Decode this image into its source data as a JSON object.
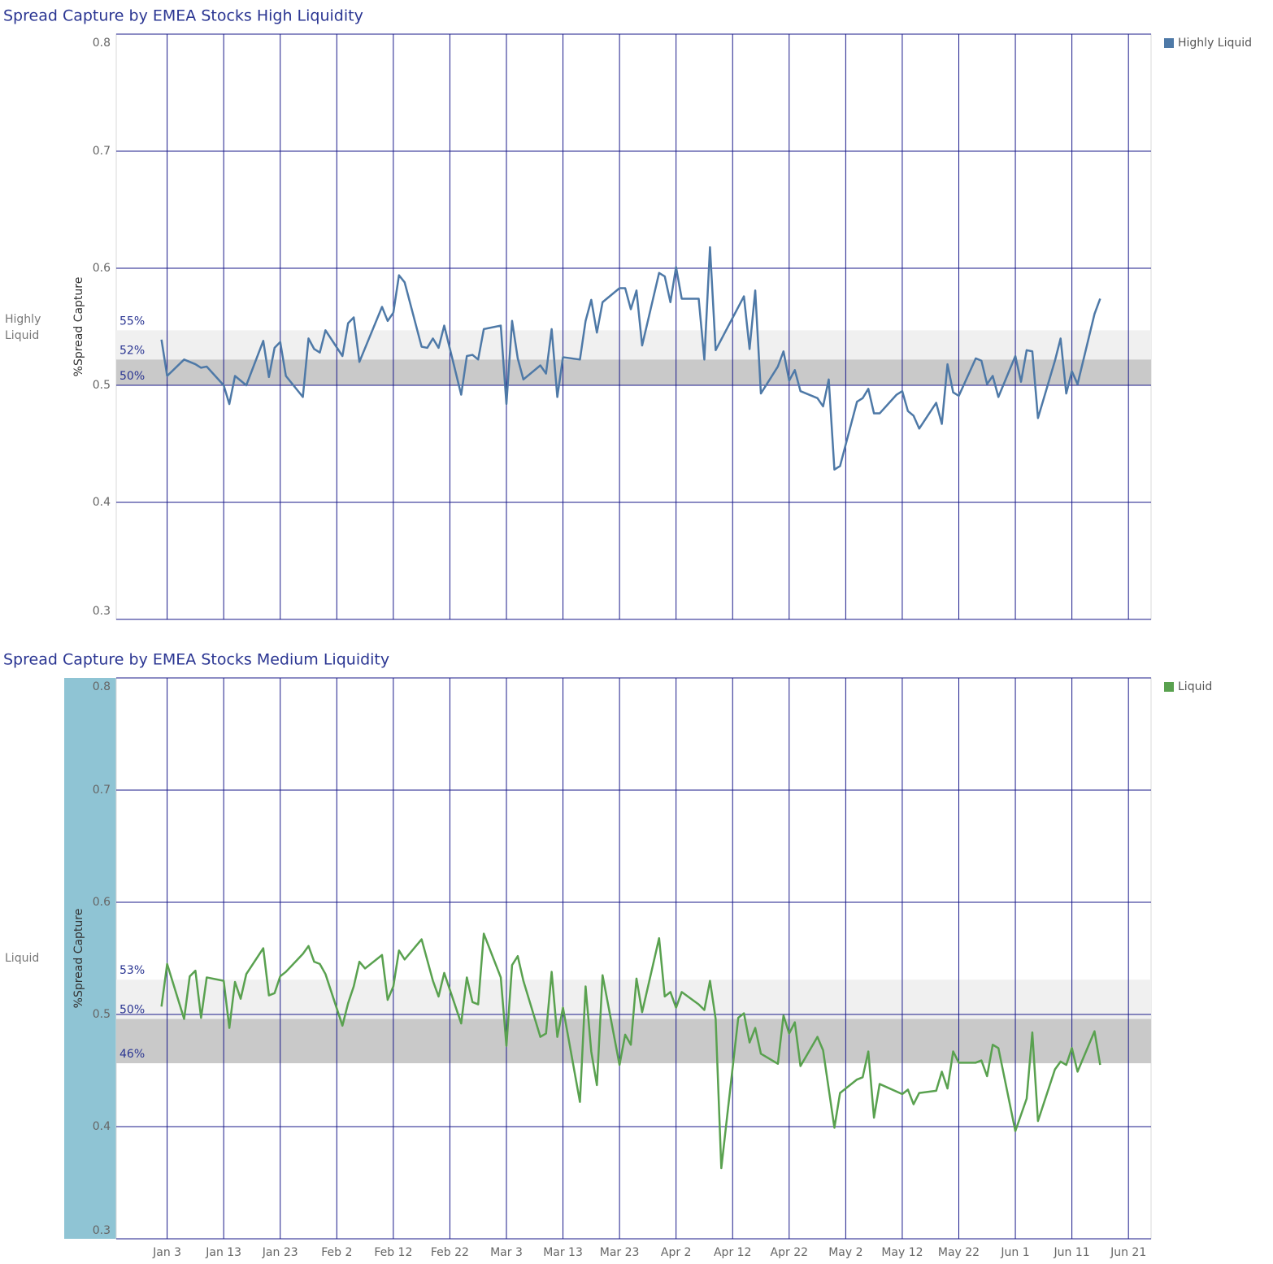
{
  "chart_data": [
    {
      "type": "line",
      "title": "Spread Capture by EMEA  Stocks High Liquidity",
      "row_label": "Highly Liquid",
      "y_label": "%Spread Capture",
      "x": [
        "Jan 2",
        "Jan 3",
        "Jan 6",
        "Jan 8",
        "Jan 9",
        "Jan 10",
        "Jan 13",
        "Jan 14",
        "Jan 15",
        "Jan 17",
        "Jan 20",
        "Jan 21",
        "Jan 22",
        "Jan 23",
        "Jan 24",
        "Jan 27",
        "Jan 28",
        "Jan 29",
        "Jan 30",
        "Jan 31",
        "Feb 3",
        "Feb 4",
        "Feb 5",
        "Feb 6",
        "Feb 10",
        "Feb 11",
        "Feb 12",
        "Feb 13",
        "Feb 14",
        "Feb 17",
        "Feb 18",
        "Feb 19",
        "Feb 20",
        "Feb 21",
        "Feb 24",
        "Feb 25",
        "Feb 26",
        "Feb 27",
        "Feb 28",
        "Mar 2",
        "Mar 3",
        "Mar 4",
        "Mar 5",
        "Mar 6",
        "Mar 9",
        "Mar 10",
        "Mar 11",
        "Mar 12",
        "Mar 13",
        "Mar 16",
        "Mar 17",
        "Mar 18",
        "Mar 19",
        "Mar 20",
        "Mar 23",
        "Mar 24",
        "Mar 25",
        "Mar 26",
        "Mar 27",
        "Mar 30",
        "Mar 31",
        "Apr 1",
        "Apr 2",
        "Apr 3",
        "Apr 6",
        "Apr 7",
        "Apr 8",
        "Apr 9",
        "Apr 14",
        "Apr 15",
        "Apr 16",
        "Apr 17",
        "Apr 20",
        "Apr 21",
        "Apr 22",
        "Apr 23",
        "Apr 24",
        "Apr 27",
        "Apr 28",
        "Apr 29",
        "Apr 30",
        "May 1",
        "May 4",
        "May 5",
        "May 6",
        "May 7",
        "May 8",
        "May 11",
        "May 12",
        "May 13",
        "May 14",
        "May 15",
        "May 18",
        "May 19",
        "May 20",
        "May 21",
        "May 22",
        "May 25",
        "May 26",
        "May 27",
        "May 28",
        "May 29",
        "Jun 1",
        "Jun 2",
        "Jun 3",
        "Jun 4",
        "Jun 5",
        "Jun 8",
        "Jun 9",
        "Jun 10",
        "Jun 11",
        "Jun 12",
        "Jun 15",
        "Jun 16"
      ],
      "series": [
        {
          "name": "Highly Liquid",
          "color": "#4e79a7",
          "values": [
            0.539,
            0.508,
            0.522,
            0.518,
            0.515,
            0.516,
            0.5,
            0.484,
            0.508,
            0.5,
            0.538,
            0.507,
            0.532,
            0.537,
            0.508,
            0.49,
            0.54,
            0.531,
            0.528,
            0.547,
            0.525,
            0.553,
            0.558,
            0.52,
            0.567,
            0.555,
            0.562,
            0.594,
            0.588,
            0.533,
            0.532,
            0.54,
            0.532,
            0.551,
            0.492,
            0.525,
            0.526,
            0.522,
            0.548,
            0.551,
            0.484,
            0.555,
            0.523,
            0.505,
            0.517,
            0.51,
            0.548,
            0.49,
            0.524,
            0.522,
            0.555,
            0.573,
            0.545,
            0.571,
            0.583,
            0.583,
            0.565,
            0.581,
            0.534,
            0.596,
            0.593,
            0.571,
            0.601,
            0.574,
            0.574,
            0.522,
            0.618,
            0.53,
            0.576,
            0.531,
            0.581,
            0.493,
            0.516,
            0.529,
            0.504,
            0.513,
            0.495,
            0.489,
            0.482,
            0.505,
            0.428,
            0.431,
            0.486,
            0.489,
            0.497,
            0.476,
            0.476,
            0.492,
            0.495,
            0.478,
            0.474,
            0.463,
            0.485,
            0.467,
            0.518,
            0.494,
            0.491,
            0.523,
            0.521,
            0.501,
            0.508,
            0.49,
            0.525,
            0.503,
            0.53,
            0.529,
            0.472,
            0.521,
            0.54,
            0.493,
            0.512,
            0.501,
            0.561,
            0.574
          ]
        }
      ],
      "xlim": [
        "Dec 25",
        "Jun 25"
      ],
      "ylim": [
        0.3,
        0.8
      ],
      "yticks": [
        0.3,
        0.4,
        0.5,
        0.6,
        0.7,
        0.8
      ],
      "reference_band": [
        {
          "value": 0.547,
          "label": "55%"
        },
        {
          "value": 0.522,
          "label": "52%"
        },
        {
          "value": 0.5,
          "label": "50%"
        }
      ],
      "grid": true,
      "legend": "right"
    },
    {
      "type": "line",
      "title": "Spread Capture by EMEA Stocks Medium Liquidity",
      "row_label": "Liquid",
      "y_label": "%Spread Capture",
      "x": [
        "Jan 2",
        "Jan 3",
        "Jan 6",
        "Jan 7",
        "Jan 8",
        "Jan 9",
        "Jan 10",
        "Jan 13",
        "Jan 14",
        "Jan 15",
        "Jan 16",
        "Jan 17",
        "Jan 20",
        "Jan 21",
        "Jan 22",
        "Jan 23",
        "Jan 24",
        "Jan 27",
        "Jan 28",
        "Jan 29",
        "Jan 30",
        "Jan 31",
        "Feb 3",
        "Feb 4",
        "Feb 5",
        "Feb 6",
        "Feb 7",
        "Feb 10",
        "Feb 11",
        "Feb 12",
        "Feb 13",
        "Feb 14",
        "Feb 17",
        "Feb 19",
        "Feb 20",
        "Feb 21",
        "Feb 24",
        "Feb 25",
        "Feb 26",
        "Feb 27",
        "Feb 28",
        "Mar 2",
        "Mar 3",
        "Mar 4",
        "Mar 5",
        "Mar 6",
        "Mar 9",
        "Mar 10",
        "Mar 11",
        "Mar 12",
        "Mar 13",
        "Mar 16",
        "Mar 17",
        "Mar 18",
        "Mar 19",
        "Mar 20",
        "Mar 23",
        "Mar 24",
        "Mar 25",
        "Mar 26",
        "Mar 27",
        "Mar 30",
        "Mar 31",
        "Apr 1",
        "Apr 2",
        "Apr 3",
        "Apr 6",
        "Apr 7",
        "Apr 8",
        "Apr 9",
        "Apr 10",
        "Apr 13",
        "Apr 14",
        "Apr 15",
        "Apr 16",
        "Apr 17",
        "Apr 20",
        "Apr 21",
        "Apr 22",
        "Apr 23",
        "Apr 24",
        "Apr 27",
        "Apr 28",
        "Apr 30",
        "May 1",
        "May 4",
        "May 5",
        "May 6",
        "May 7",
        "May 8",
        "May 12",
        "May 13",
        "May 14",
        "May 15",
        "May 18",
        "May 19",
        "May 20",
        "May 21",
        "May 22",
        "May 25",
        "May 26",
        "May 27",
        "May 28",
        "May 29",
        "Jun 1",
        "Jun 3",
        "Jun 4",
        "Jun 5",
        "Jun 8",
        "Jun 9",
        "Jun 10",
        "Jun 11",
        "Jun 12",
        "Jun 15",
        "Jun 16"
      ],
      "series": [
        {
          "name": "Liquid",
          "color": "#59a14f",
          "values": [
            0.507,
            0.545,
            0.496,
            0.534,
            0.539,
            0.497,
            0.533,
            0.53,
            0.488,
            0.529,
            0.514,
            0.536,
            0.559,
            0.517,
            0.519,
            0.534,
            0.538,
            0.554,
            0.561,
            0.547,
            0.545,
            0.536,
            0.49,
            0.51,
            0.525,
            0.547,
            0.541,
            0.553,
            0.513,
            0.525,
            0.557,
            0.549,
            0.567,
            0.53,
            0.516,
            0.537,
            0.492,
            0.533,
            0.511,
            0.509,
            0.572,
            0.533,
            0.472,
            0.544,
            0.552,
            0.53,
            0.48,
            0.483,
            0.538,
            0.48,
            0.506,
            0.422,
            0.525,
            0.467,
            0.437,
            0.535,
            0.455,
            0.482,
            0.473,
            0.532,
            0.502,
            0.568,
            0.516,
            0.52,
            0.506,
            0.52,
            0.509,
            0.504,
            0.53,
            0.496,
            0.363,
            0.497,
            0.501,
            0.475,
            0.488,
            0.465,
            0.456,
            0.499,
            0.483,
            0.493,
            0.454,
            0.48,
            0.468,
            0.399,
            0.43,
            0.442,
            0.444,
            0.467,
            0.408,
            0.438,
            0.429,
            0.433,
            0.42,
            0.43,
            0.432,
            0.449,
            0.434,
            0.467,
            0.457,
            0.457,
            0.459,
            0.445,
            0.473,
            0.47,
            0.396,
            0.425,
            0.484,
            0.405,
            0.451,
            0.458,
            0.455,
            0.47,
            0.449,
            0.485,
            0.455
          ]
        }
      ],
      "xlim": [
        "Dec 25",
        "Jun 25"
      ],
      "xticks": [
        "Jan 3",
        "Jan 13",
        "Jan 23",
        "Feb 2",
        "Feb 12",
        "Feb 22",
        "Mar 3",
        "Mar 13",
        "Mar 23",
        "Apr 2",
        "Apr 12",
        "Apr 22",
        "May 2",
        "May 12",
        "May 22",
        "Jun 1",
        "Jun 11",
        "Jun 21"
      ],
      "ylim": [
        0.3,
        0.8
      ],
      "yticks": [
        0.3,
        0.4,
        0.5,
        0.6,
        0.7,
        0.8
      ],
      "reference_band": [
        {
          "value": 0.531,
          "label": "53%"
        },
        {
          "value": 0.496,
          "label": "50%"
        },
        {
          "value": 0.4565,
          "label": "46%"
        }
      ],
      "grid": true,
      "legend": "right"
    }
  ]
}
